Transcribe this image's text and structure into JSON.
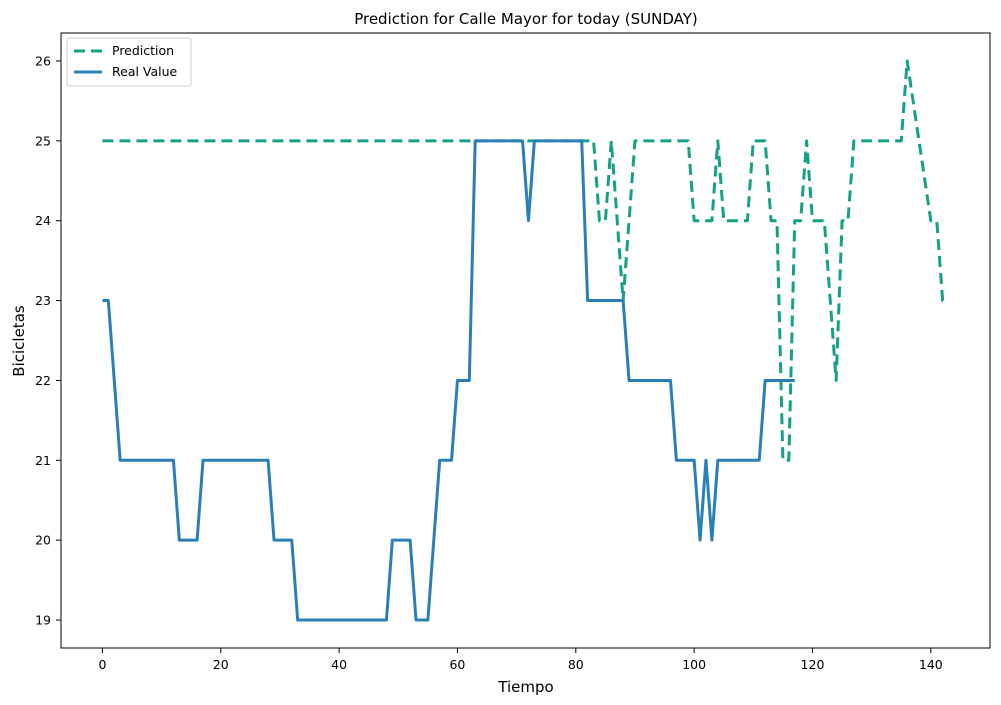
{
  "chart_data": {
    "type": "line",
    "title": "Prediction for Calle Mayor for today (SUNDAY)",
    "xlabel": "Tiempo",
    "ylabel": "Bicicletas",
    "xlim": [
      -7,
      150
    ],
    "ylim": [
      18.65,
      26.35
    ],
    "xticks": [
      0,
      20,
      40,
      60,
      80,
      100,
      120,
      140
    ],
    "yticks": [
      19,
      20,
      21,
      22,
      23,
      24,
      25,
      26
    ],
    "grid": false,
    "legend_position": "upper-left",
    "series": [
      {
        "name": "Prediction",
        "color": "#16a085",
        "style": "dashed",
        "points": [
          [
            0,
            25
          ],
          [
            83,
            25
          ],
          [
            84,
            24
          ],
          [
            85,
            24
          ],
          [
            86,
            25
          ],
          [
            88,
            23
          ],
          [
            90,
            25
          ],
          [
            99,
            25
          ],
          [
            100,
            24
          ],
          [
            103,
            24
          ],
          [
            104,
            25
          ],
          [
            105,
            24
          ],
          [
            109,
            24
          ],
          [
            110,
            25
          ],
          [
            112,
            25
          ],
          [
            113,
            24
          ],
          [
            114,
            24
          ],
          [
            115,
            21
          ],
          [
            116,
            21
          ],
          [
            117,
            24
          ],
          [
            118,
            24
          ],
          [
            119,
            25
          ],
          [
            120,
            24
          ],
          [
            122,
            24
          ],
          [
            124,
            22
          ],
          [
            125,
            24
          ],
          [
            126,
            24
          ],
          [
            127,
            25
          ],
          [
            135,
            25
          ],
          [
            136,
            26
          ],
          [
            138,
            25
          ],
          [
            140,
            24
          ],
          [
            141,
            24
          ],
          [
            142,
            23
          ],
          [
            143,
            23
          ]
        ]
      },
      {
        "name": "Real Value",
        "color": "#2980b9",
        "style": "solid",
        "points": [
          [
            0,
            23
          ],
          [
            1,
            23
          ],
          [
            3,
            21
          ],
          [
            12,
            21
          ],
          [
            13,
            20
          ],
          [
            16,
            20
          ],
          [
            17,
            21
          ],
          [
            28,
            21
          ],
          [
            29,
            20
          ],
          [
            32,
            20
          ],
          [
            33,
            19
          ],
          [
            48,
            19
          ],
          [
            49,
            20
          ],
          [
            52,
            20
          ],
          [
            53,
            19
          ],
          [
            55,
            19
          ],
          [
            57,
            21
          ],
          [
            59,
            21
          ],
          [
            60,
            22
          ],
          [
            62,
            22
          ],
          [
            63,
            25
          ],
          [
            71,
            25
          ],
          [
            72,
            24
          ],
          [
            73,
            25
          ],
          [
            81,
            25
          ],
          [
            82,
            23
          ],
          [
            88,
            23
          ],
          [
            89,
            22
          ],
          [
            96,
            22
          ],
          [
            97,
            21
          ],
          [
            100,
            21
          ],
          [
            101,
            20
          ],
          [
            102,
            21
          ],
          [
            103,
            20
          ],
          [
            104,
            21
          ],
          [
            111,
            21
          ],
          [
            112,
            22
          ],
          [
            117,
            22
          ]
        ]
      }
    ]
  }
}
